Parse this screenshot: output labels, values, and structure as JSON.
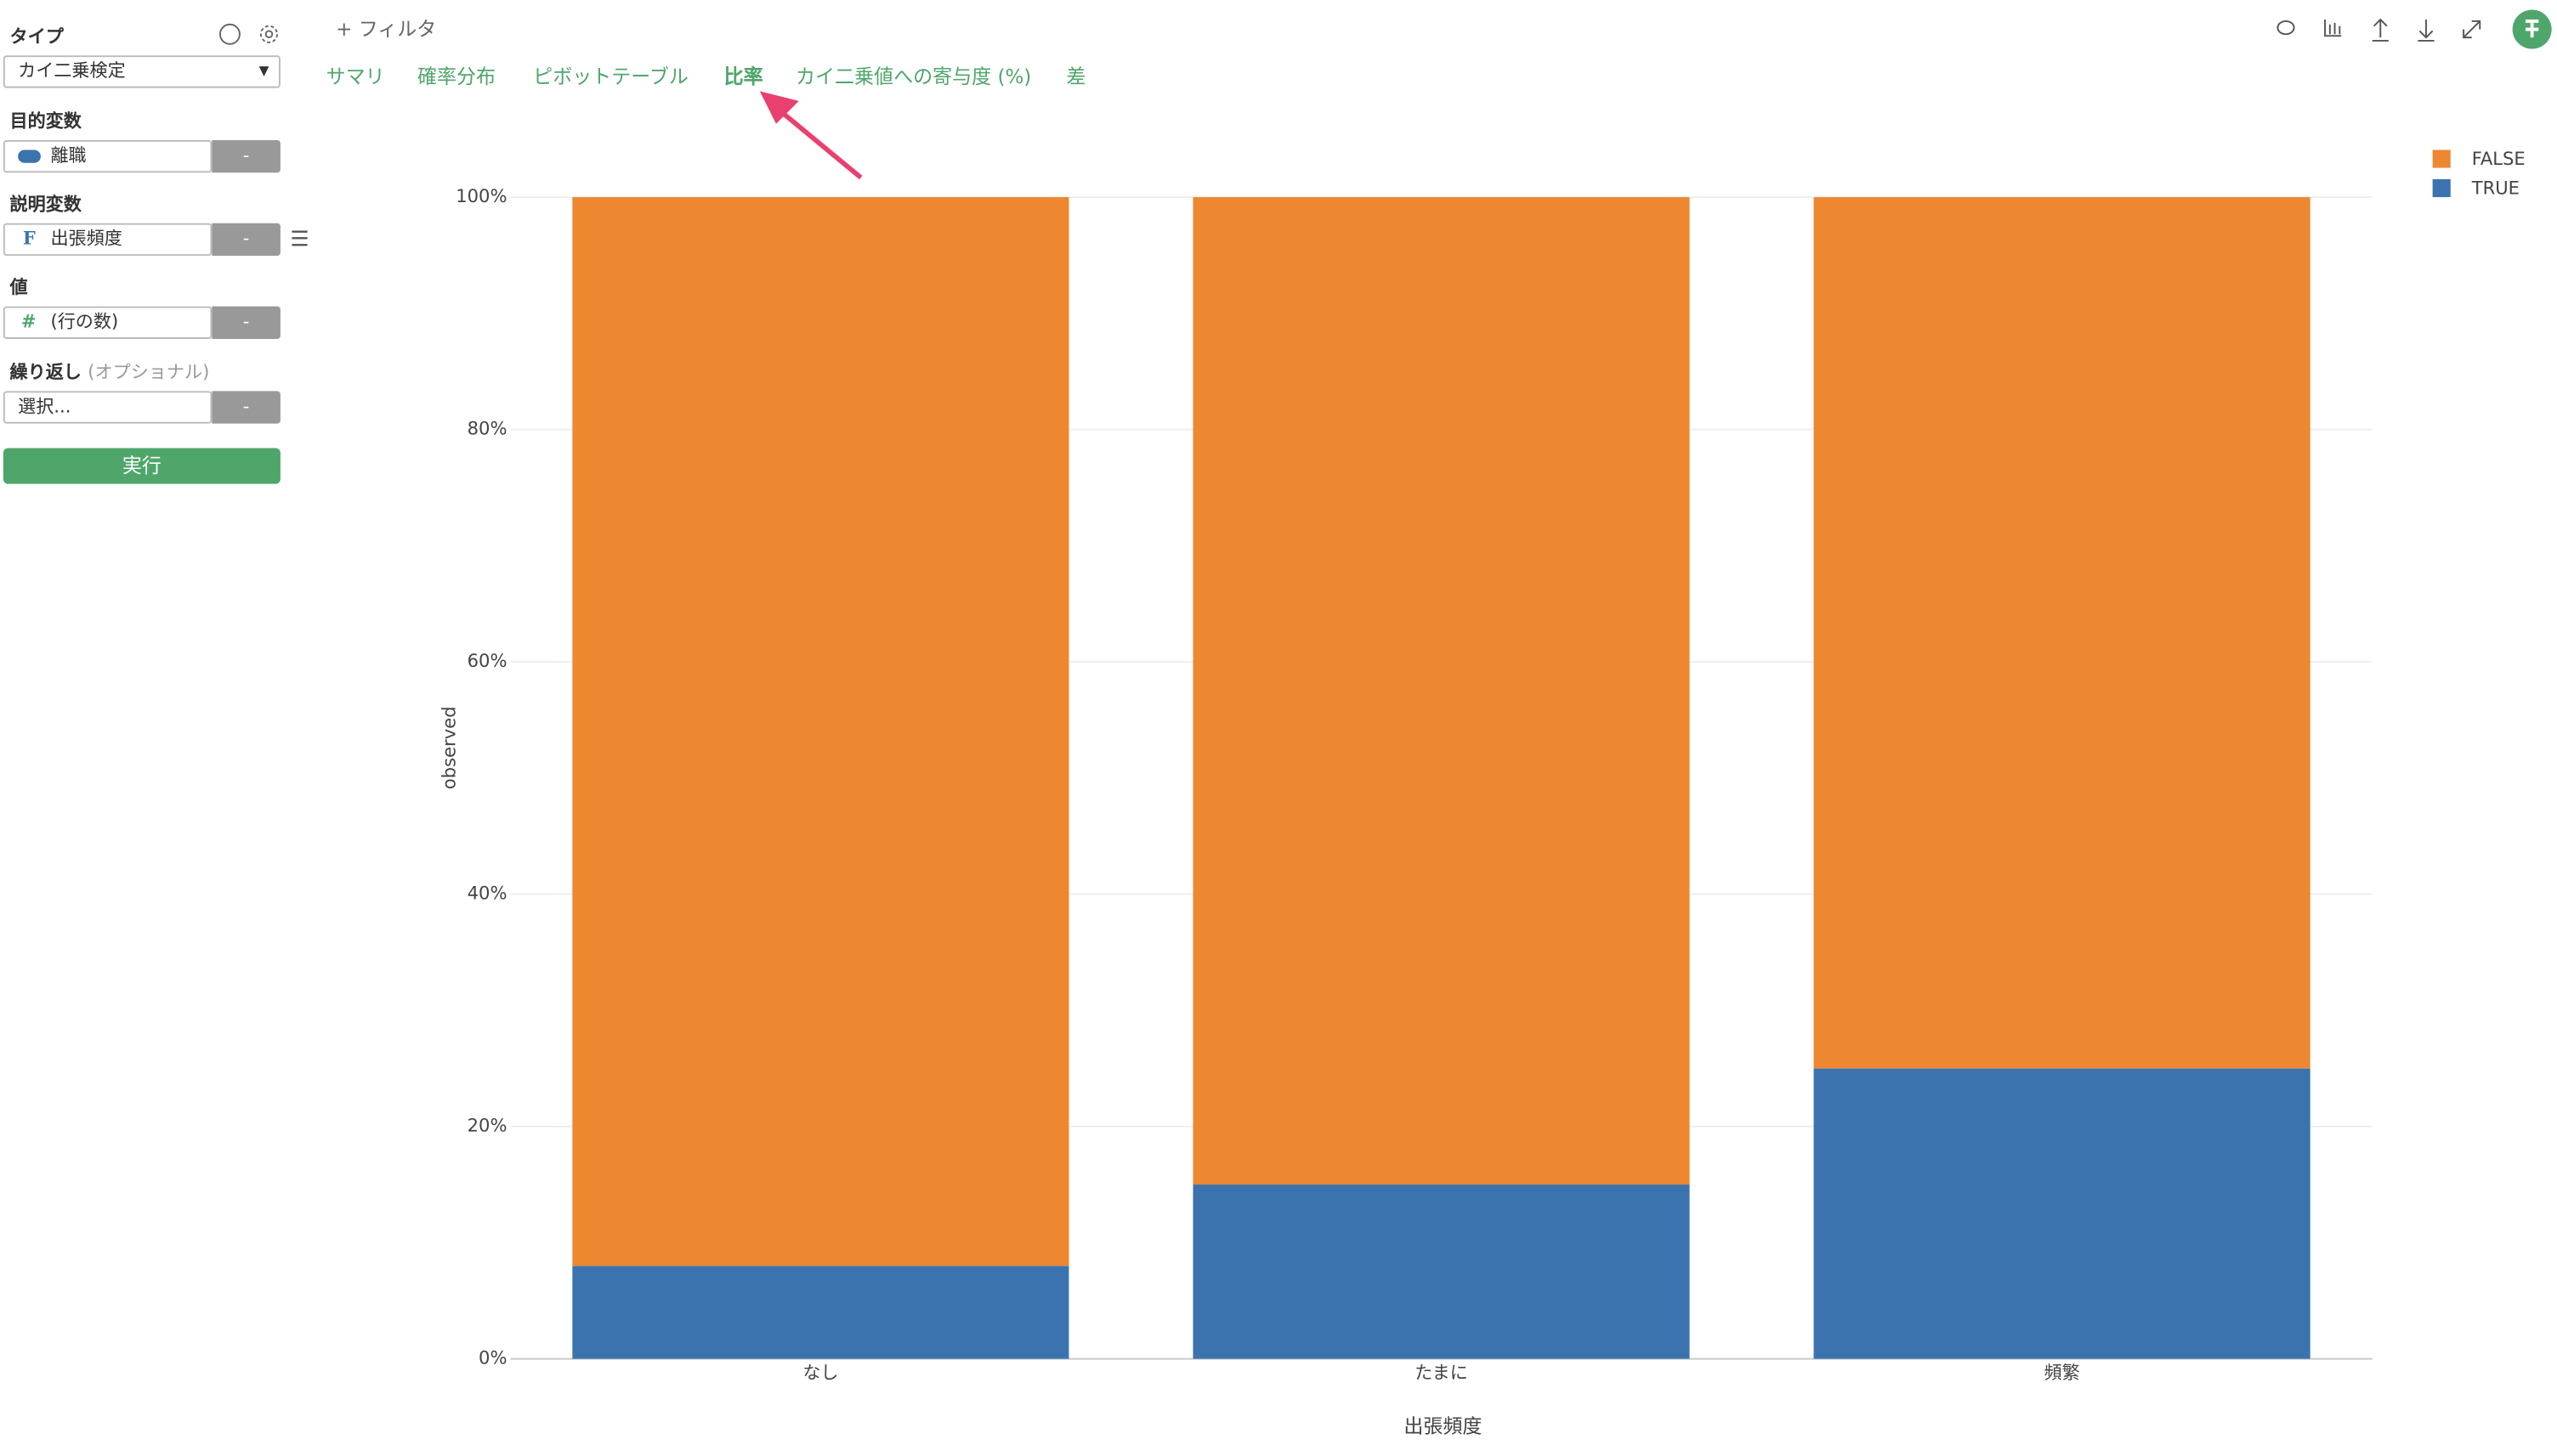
{
  "sidebar": {
    "type_label": "タイプ",
    "type_value": "カイ二乗検定",
    "target_label": "目的変数",
    "target_value": "離職",
    "target_button": "-",
    "explanatory_label": "説明変数",
    "explanatory_icon": "F",
    "explanatory_value": "出張頻度",
    "explanatory_button": "-",
    "value_label": "値",
    "value_icon": "#",
    "value_value": "(行の数)",
    "value_button": "-",
    "repeat_label": "繰り返し",
    "repeat_optional": "(オプショナル)",
    "repeat_value": "選択...",
    "repeat_button": "-",
    "run_button": "実行"
  },
  "toolbar": {
    "filter": "フィルタ"
  },
  "tabs": [
    "サマリ",
    "確率分布",
    "ピボットテーブル",
    "比率",
    "カイ二乗値への寄与度 (%)",
    "差"
  ],
  "active_tab": 3,
  "chart_data": {
    "type": "bar",
    "stacked": true,
    "x_label": "出張頻度",
    "y_label": "observed",
    "categories": [
      "なし",
      "たまに",
      "頻繁"
    ],
    "series": [
      {
        "name": "TRUE",
        "color": "#3b73af",
        "values": [
          8,
          15,
          25
        ]
      },
      {
        "name": "FALSE",
        "color": "#ed8730",
        "values": [
          92,
          85,
          75
        ]
      }
    ],
    "ylim": [
      0,
      100
    ],
    "yticks": [
      {
        "value": 0,
        "label": "0%"
      },
      {
        "value": 20,
        "label": "20%"
      },
      {
        "value": 40,
        "label": "40%"
      },
      {
        "value": 60,
        "label": "60%"
      },
      {
        "value": 80,
        "label": "80%"
      },
      {
        "value": 100,
        "label": "100%"
      }
    ],
    "grid": true,
    "legend": "top-right"
  }
}
